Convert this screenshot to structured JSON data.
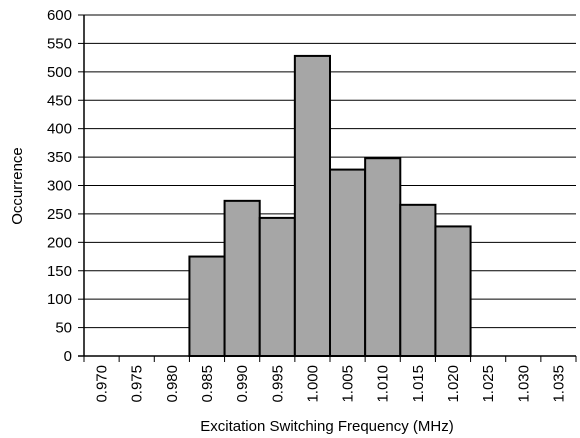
{
  "chart_data": {
    "type": "bar",
    "subtype": "histogram",
    "title": "",
    "xlabel": "Excitation Switching Frequency (MHz)",
    "ylabel": "Occurrence",
    "categories": [
      "0.970",
      "0.975",
      "0.980",
      "0.985",
      "0.990",
      "0.995",
      "1.000",
      "1.005",
      "1.010",
      "1.015",
      "1.020",
      "1.025",
      "1.030",
      "1.035"
    ],
    "values": [
      0,
      0,
      0,
      175,
      273,
      243,
      528,
      328,
      348,
      266,
      228,
      0,
      0,
      0
    ],
    "ylim": [
      0,
      600
    ],
    "yticks": [
      "0",
      "50",
      "100",
      "150",
      "200",
      "250",
      "300",
      "350",
      "400",
      "450",
      "500",
      "550",
      "600"
    ],
    "grid": "horizontal",
    "legend": "none",
    "bar_color": "#a6a6a6",
    "edge_color": "#000000"
  }
}
